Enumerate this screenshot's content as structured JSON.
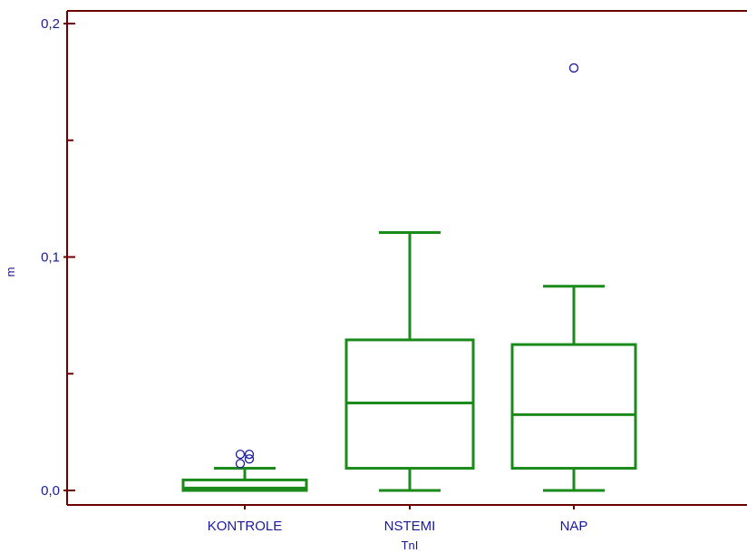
{
  "chart_data": {
    "type": "boxplot",
    "xlabel": "TnI",
    "ylabel": "m",
    "ylim": [
      0,
      0.2
    ],
    "yticks": [
      {
        "value": 0,
        "label": "0,0"
      },
      {
        "value": 0.1,
        "label": "0,1"
      },
      {
        "value": 0.2,
        "label": "0,2"
      }
    ],
    "categories": [
      "KONTROLE",
      "NSTEMI",
      "NAP"
    ],
    "boxes": [
      {
        "category": "KONTROLE",
        "whisker_low": 0.0,
        "q1": 0.0,
        "median": 0.001,
        "q3": 0.0045,
        "whisker_high": 0.0095,
        "outliers": [
          0.0115,
          0.0135,
          0.0155,
          0.0155
        ]
      },
      {
        "category": "NSTEMI",
        "whisker_low": 0.0,
        "q1": 0.0095,
        "median": 0.0375,
        "q3": 0.0645,
        "whisker_high": 0.1105,
        "outliers": []
      },
      {
        "category": "NAP",
        "whisker_low": 0.0,
        "q1": 0.0095,
        "median": 0.0325,
        "q3": 0.0625,
        "whisker_high": 0.0875,
        "outliers": [
          0.181
        ]
      }
    ],
    "colors": {
      "box": "#1a8a1a",
      "axis": "#6b0000",
      "outlier": "#1a1a99",
      "label": "#1a1a99"
    },
    "grid": false
  }
}
